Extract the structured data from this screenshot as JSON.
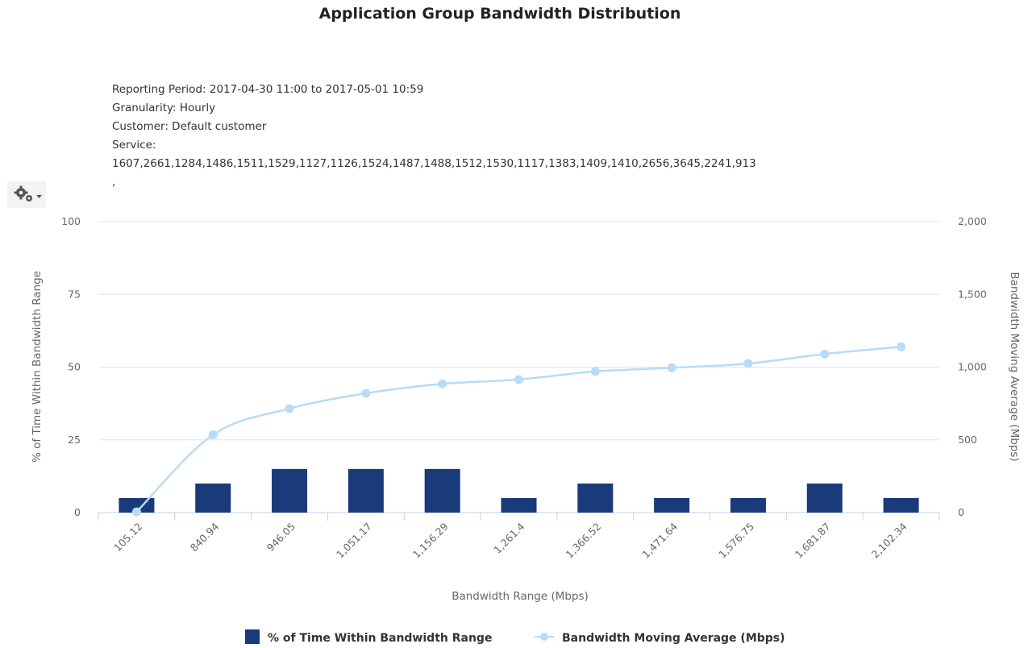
{
  "header": {
    "title": "Application Group Bandwidth Distribution",
    "meta": [
      "Reporting Period: 2017-04-30 11:00 to 2017-05-01 10:59",
      "Granularity: Hourly",
      "Customer: Default customer",
      "Service:",
      "1607,2661,1284,1486,1511,1529,1127,1126,1524,1487,1488,1512,1530,1117,1383,1409,1410,2656,3645,2241,913",
      ","
    ]
  },
  "toolbar": {
    "menu_icon": "gear-icon"
  },
  "chart_data": {
    "type": "bar",
    "categories": [
      "105.12",
      "840.94",
      "946.05",
      "1,051.17",
      "1,156.29",
      "1,261.4",
      "1,366.52",
      "1,471.64",
      "1,576.75",
      "1,681.87",
      "2,102.34"
    ],
    "series": [
      {
        "name": "% of Time Within Bandwidth Range",
        "type": "bar",
        "axis": "left",
        "color": "#1a3a7a",
        "values": [
          5,
          10,
          15,
          15,
          15,
          5,
          10,
          5,
          5,
          10,
          5
        ]
      },
      {
        "name": "Bandwidth Moving Average (Mbps)",
        "type": "line",
        "axis": "right",
        "color": "#b8dcf5",
        "values": [
          5,
          535,
          715,
          820,
          885,
          915,
          970,
          995,
          1025,
          1090,
          1140
        ]
      }
    ],
    "xlabel": "Bandwidth Range (Mbps)",
    "ylabel_left": "% of Time Within Bandwidth Range",
    "ylabel_right": "Bandwidth Moving Average (Mbps)",
    "ylim_left": [
      0,
      100
    ],
    "ylim_right": [
      0,
      2000
    ],
    "yticks_left": [
      "0",
      "25",
      "50",
      "75",
      "100"
    ],
    "yticks_right": [
      "0",
      "500",
      "1,000",
      "1,500",
      "2,000"
    ],
    "grid": true,
    "legend": "bottom-center"
  }
}
